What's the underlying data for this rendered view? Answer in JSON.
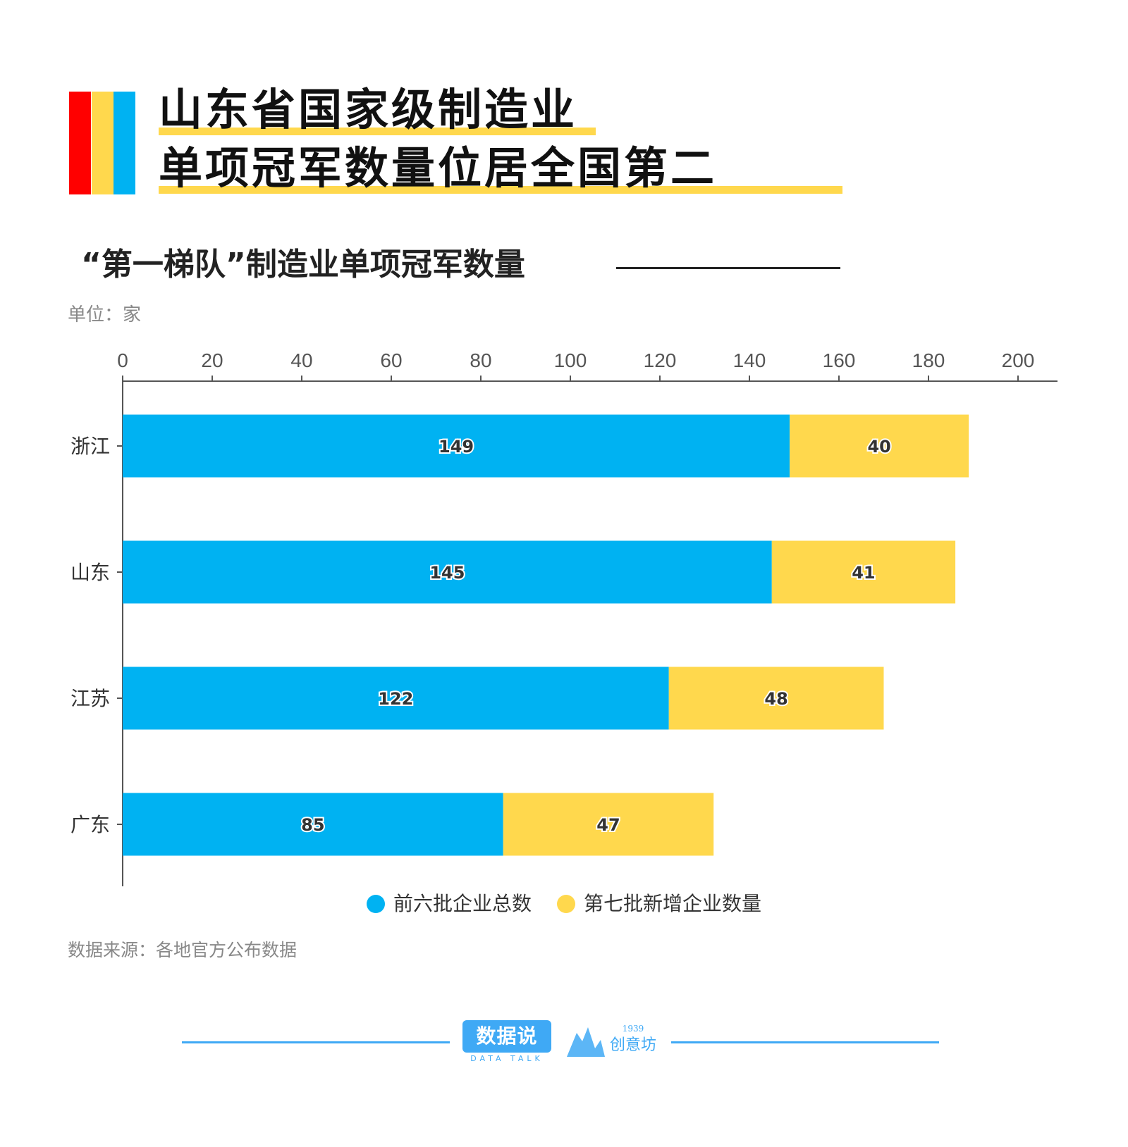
{
  "title": {
    "line1": "山东省国家级制造业",
    "line2": "单项冠军数量位居全国第二"
  },
  "subtitle": "“第一梯队”制造业单项冠军数量",
  "unit_label": "单位：家",
  "source": "数据来源：各地官方公布数据",
  "colors": {
    "red": "#ff0000",
    "yellow": "#ffd84d",
    "blue": "#00b2f2",
    "footer_blue": "#3fa9f5"
  },
  "chart_data": {
    "type": "bar",
    "orientation": "horizontal",
    "stacked": true,
    "categories": [
      "浙江",
      "山东",
      "江苏",
      "广东"
    ],
    "series": [
      {
        "name": "前六批企业总数",
        "color": "#00b2f2",
        "values": [
          149,
          145,
          122,
          85
        ]
      },
      {
        "name": "第七批新增企业数量",
        "color": "#ffd84d",
        "values": [
          40,
          41,
          48,
          47
        ]
      }
    ],
    "xlim": [
      0,
      200
    ],
    "x_ticks": [
      "0",
      "20",
      "40",
      "60",
      "80",
      "100",
      "120",
      "140",
      "160",
      "180",
      "200"
    ],
    "x_axis_position": "top",
    "grid": false,
    "legend_position": "bottom-center"
  },
  "footer": {
    "logo1_text": "数据说",
    "logo1_sub": "DATA TALK",
    "logo2_year": "1939",
    "logo2_text": "创意坊"
  }
}
